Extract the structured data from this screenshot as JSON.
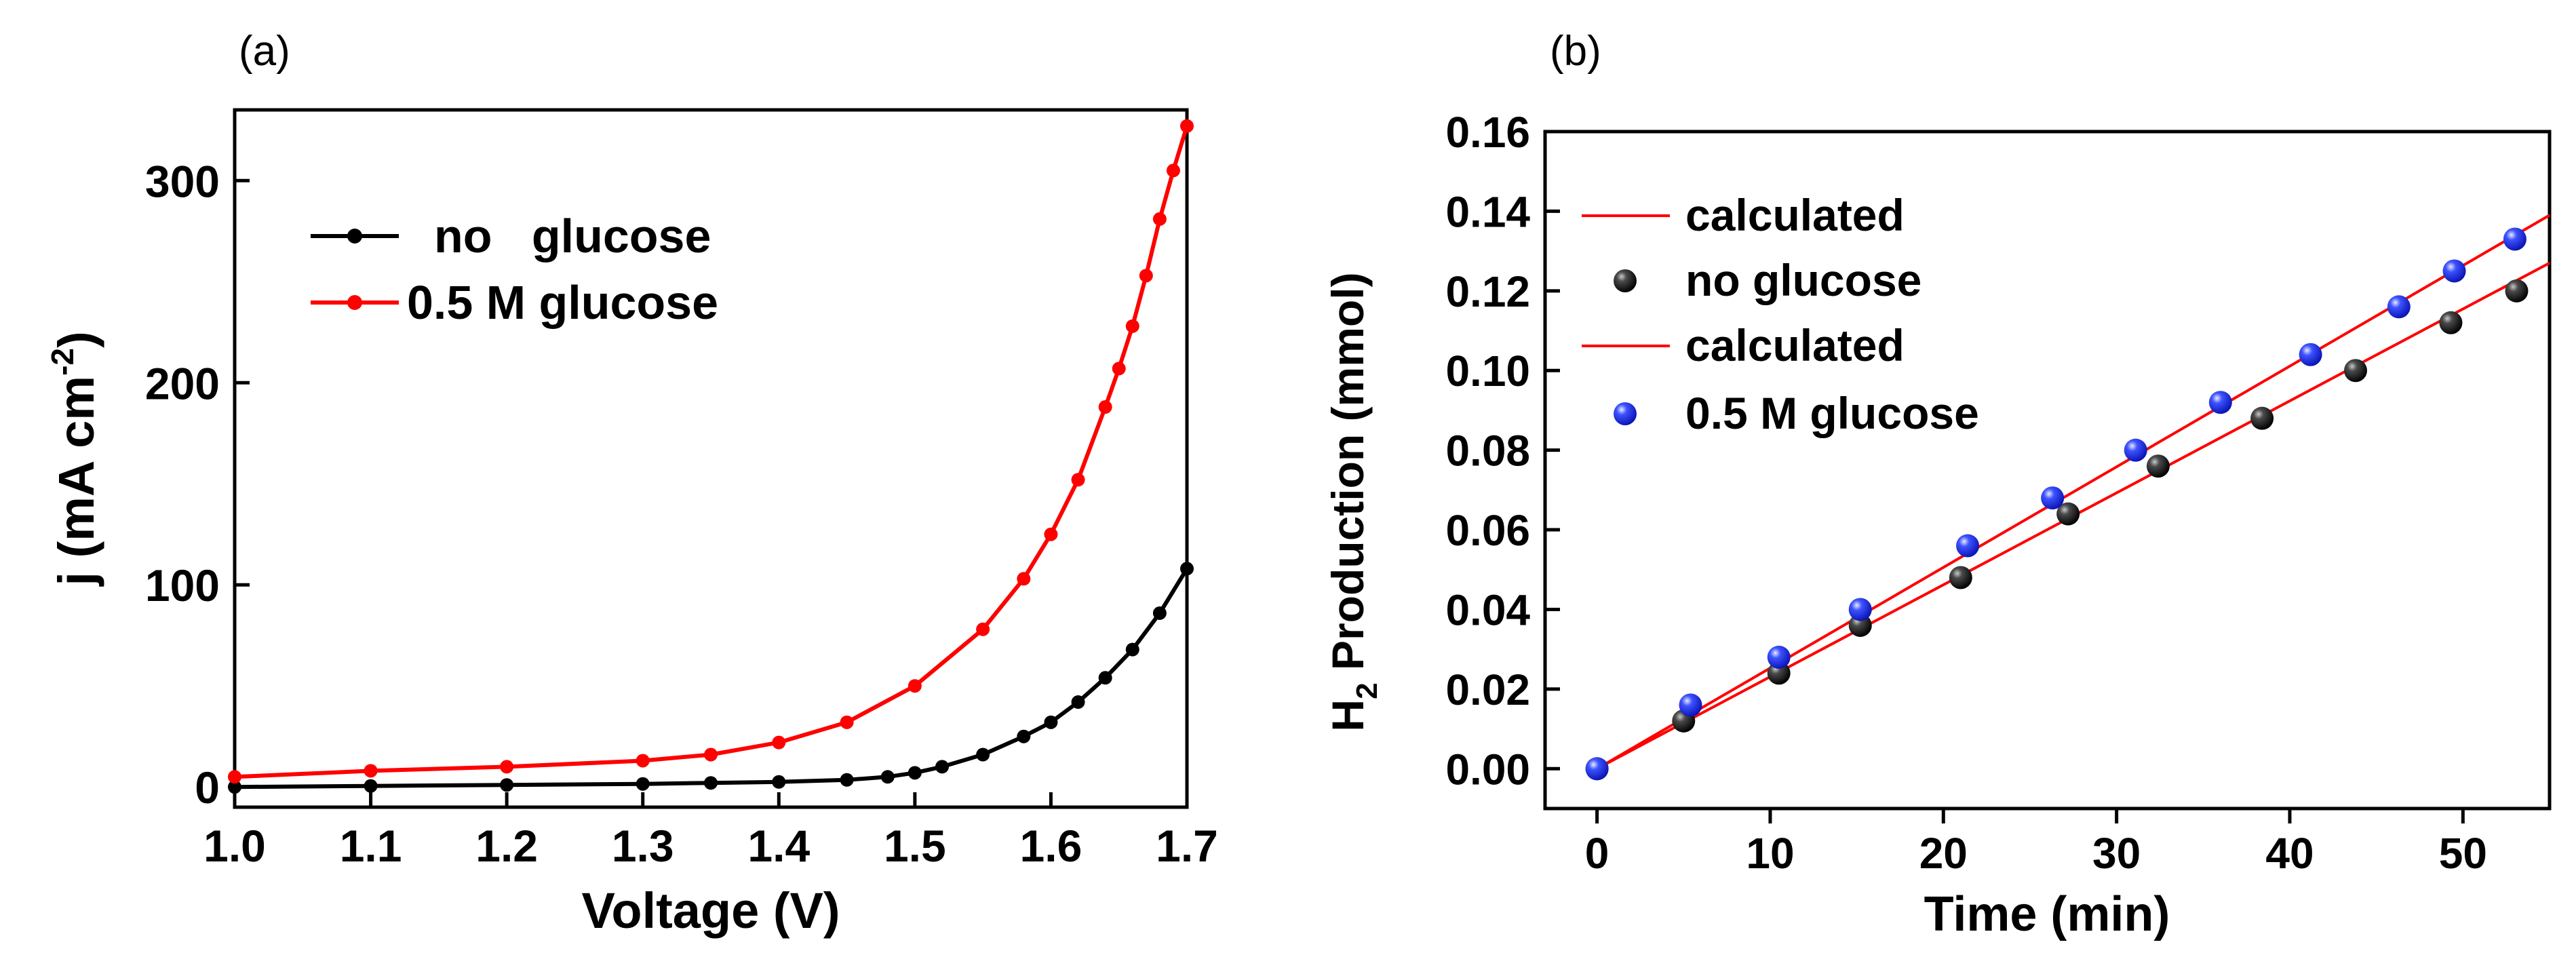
{
  "chart_data": [
    {
      "panel_label": "(a)",
      "type": "line",
      "title": "",
      "xlabel": "Voltage (V)",
      "ylabel": {
        "main": "j (mA cm",
        "sup": "-2",
        "close": ")"
      },
      "xlim": [
        1.0,
        1.7
      ],
      "ylim": [
        -10,
        335
      ],
      "xticks": [
        1.0,
        1.1,
        1.2,
        1.3,
        1.4,
        1.5,
        1.6,
        1.7
      ],
      "xtick_labels": [
        "1.0",
        "1.1",
        "1.2",
        "1.3",
        "1.4",
        "1.5",
        "1.6",
        "1.7"
      ],
      "yticks": [
        0,
        100,
        200,
        300
      ],
      "ytick_labels": [
        "0",
        "100",
        "200",
        "300"
      ],
      "grid": false,
      "legend": "upper-left",
      "series": [
        {
          "name": "no   glucose",
          "color": "#000000",
          "x": [
            1.0,
            1.1,
            1.2,
            1.3,
            1.35,
            1.4,
            1.45,
            1.48,
            1.5,
            1.52,
            1.55,
            1.58,
            1.6,
            1.62,
            1.64,
            1.66,
            1.68,
            1.7
          ],
          "y": [
            0,
            0.5,
            1,
            1.5,
            2,
            2.5,
            3.5,
            5,
            7,
            10,
            16,
            25,
            32,
            42,
            54,
            68,
            86,
            108
          ]
        },
        {
          "name": "0.5 M glucose",
          "color": "#ff0000",
          "x": [
            1.0,
            1.1,
            1.2,
            1.3,
            1.35,
            1.4,
            1.45,
            1.5,
            1.55,
            1.58,
            1.6,
            1.62,
            1.64,
            1.65,
            1.66,
            1.67,
            1.68,
            1.69,
            1.7
          ],
          "y": [
            5,
            8,
            10,
            13,
            16,
            22,
            32,
            50,
            78,
            103,
            125,
            152,
            188,
            207,
            228,
            253,
            281,
            305,
            327
          ]
        }
      ]
    },
    {
      "panel_label": "(b)",
      "type": "scatter",
      "title": "",
      "xlabel": "Time (min)",
      "ylabel": {
        "main": "H",
        "sub": "2",
        "rest": " Production (mmol)"
      },
      "xlim": [
        -3,
        55
      ],
      "ylim": [
        -0.01,
        0.16
      ],
      "xticks": [
        0,
        10,
        20,
        30,
        40,
        50
      ],
      "xtick_labels": [
        "0",
        "10",
        "20",
        "30",
        "40",
        "50"
      ],
      "yticks": [
        0.0,
        0.02,
        0.04,
        0.06,
        0.08,
        0.1,
        0.12,
        0.14,
        0.16
      ],
      "ytick_labels": [
        "0.00",
        "0.02",
        "0.04",
        "0.06",
        "0.08",
        "0.10",
        "0.12",
        "0.14",
        "0.16"
      ],
      "grid": false,
      "legend": "upper-left",
      "legend_entries": [
        {
          "label": "calculated",
          "kind": "line",
          "color": "#ff0000"
        },
        {
          "label": "no glucose",
          "kind": "marker",
          "color": "#000000"
        },
        {
          "label": "calculated",
          "kind": "line",
          "color": "#ff0000"
        },
        {
          "label": "0.5 M glucose",
          "kind": "marker",
          "color": "#1a2bff"
        }
      ],
      "lines": [
        {
          "name": "calculated (no glucose)",
          "color": "#ff0000",
          "x": [
            0,
            55
          ],
          "y": [
            0,
            0.127
          ]
        },
        {
          "name": "calculated (0.5 M glucose)",
          "color": "#ff0000",
          "x": [
            0,
            55
          ],
          "y": [
            0,
            0.139
          ]
        }
      ],
      "series": [
        {
          "name": "no glucose",
          "color": "#000000",
          "x": [
            0,
            5,
            10.5,
            15.2,
            21,
            27.2,
            32.4,
            38.4,
            43.8,
            49.3,
            53.1
          ],
          "y": [
            0,
            0.012,
            0.024,
            0.036,
            0.048,
            0.064,
            0.076,
            0.088,
            0.1,
            0.112,
            0.12
          ]
        },
        {
          "name": "0.5 M glucose",
          "color": "#1a2bff",
          "x": [
            0,
            5.4,
            10.5,
            15.2,
            21.4,
            26.3,
            31.1,
            36,
            41.2,
            46.3,
            49.5,
            53
          ],
          "y": [
            0,
            0.016,
            0.028,
            0.04,
            0.056,
            0.068,
            0.08,
            0.092,
            0.104,
            0.116,
            0.125,
            0.133
          ]
        }
      ]
    }
  ]
}
